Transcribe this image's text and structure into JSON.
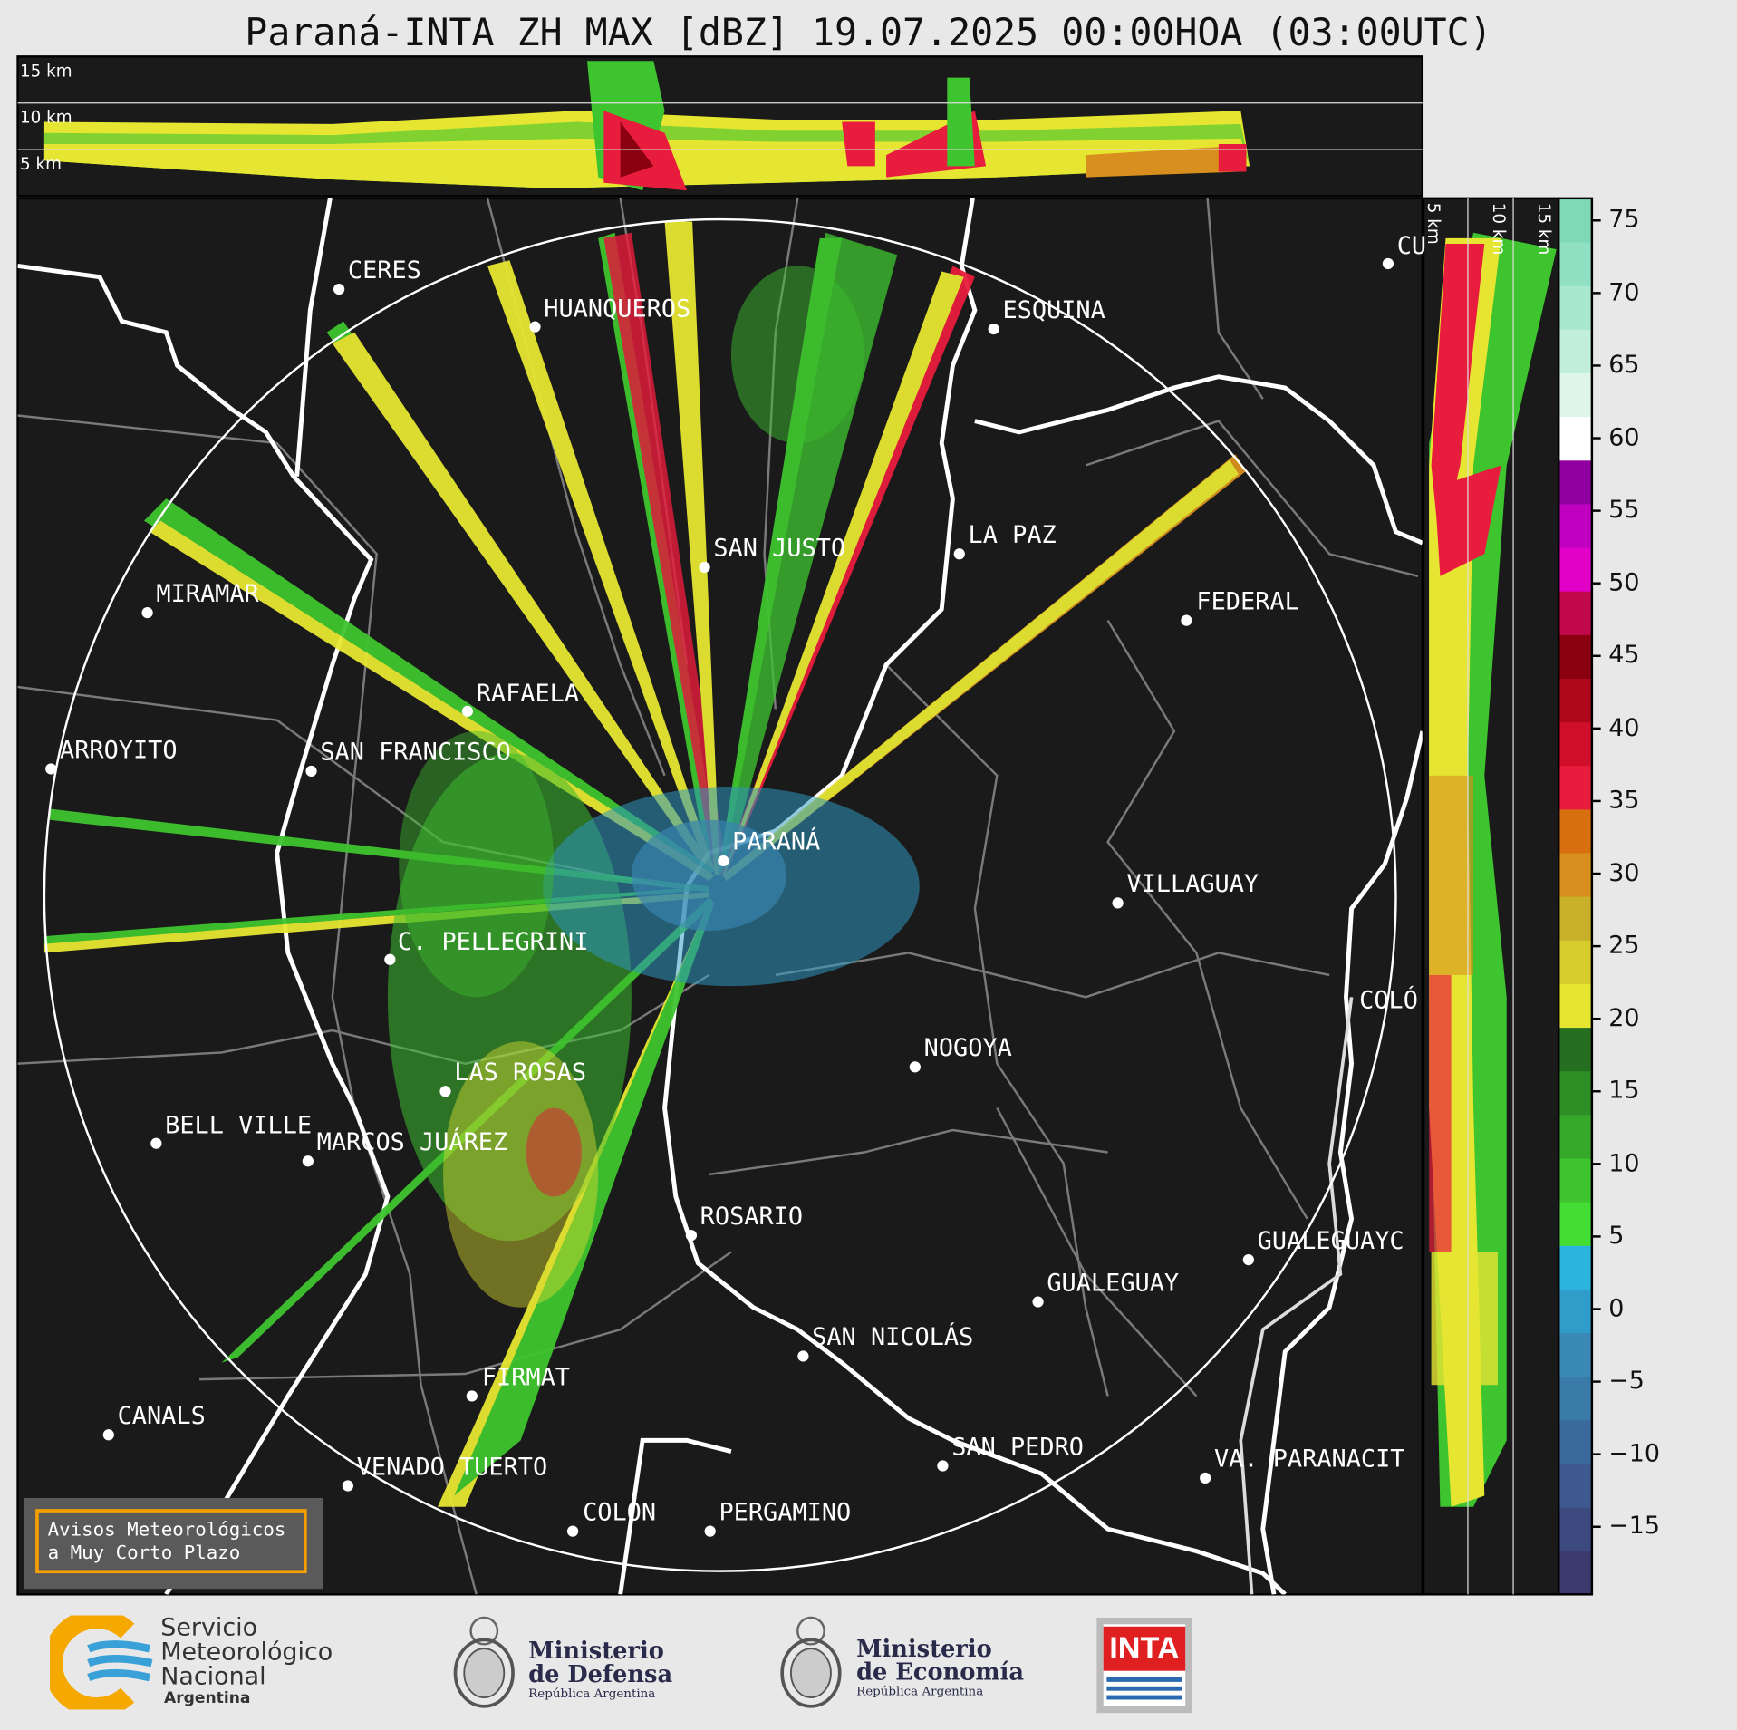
{
  "title": "Paraná-INTA ZH MAX [dBZ] 19.07.2025 00:00HOA (03:00UTC)",
  "top_panel_labels": [
    "15 km",
    "10 km",
    "5 km"
  ],
  "side_panel_labels": [
    "5 km",
    "10 km",
    "15 km"
  ],
  "cities": [
    {
      "name": "CERES"
    },
    {
      "name": "HUANQUEROS"
    },
    {
      "name": "ESQUINA"
    },
    {
      "name": "CU"
    },
    {
      "name": "SAN JUSTO"
    },
    {
      "name": "LA PAZ"
    },
    {
      "name": "MIRAMAR"
    },
    {
      "name": "FEDERAL"
    },
    {
      "name": "RAFAELA"
    },
    {
      "name": "ARROYITO"
    },
    {
      "name": "SAN FRANCISCO"
    },
    {
      "name": "PARANÁ"
    },
    {
      "name": "VILLAGUAY"
    },
    {
      "name": "C. PELLEGRINI"
    },
    {
      "name": "COLÓ"
    },
    {
      "name": "NOGOYA"
    },
    {
      "name": "LAS ROSAS"
    },
    {
      "name": "BELL VILLE"
    },
    {
      "name": "MARCOS JUÁREZ"
    },
    {
      "name": "ROSARIO"
    },
    {
      "name": "GUALEGUAYC"
    },
    {
      "name": "GUALEGUAY"
    },
    {
      "name": "SAN NICOLÁS"
    },
    {
      "name": "FIRMAT"
    },
    {
      "name": "CANALS"
    },
    {
      "name": "SAN PEDRO"
    },
    {
      "name": "VENADO TUERTO"
    },
    {
      "name": "VA. PARANACIT"
    },
    {
      "name": "COLÓN"
    },
    {
      "name": "PERGAMINO"
    }
  ],
  "colorbar": {
    "ticks": [
      "75",
      "70",
      "65",
      "60",
      "55",
      "50",
      "45",
      "40",
      "35",
      "30",
      "25",
      "20",
      "15",
      "10",
      "5",
      "0",
      "−5",
      "−10",
      "−15"
    ],
    "colors": [
      "#3a3a6e",
      "#3d4a80",
      "#3f5a90",
      "#3a6a9c",
      "#3a7aa8",
      "#3b8ab5",
      "#2f9cc9",
      "#2ab4de",
      "#44dd33",
      "#3ec42f",
      "#36a82a",
      "#2e8f26",
      "#266f20",
      "#e6e632",
      "#d6cc2c",
      "#c9b02a",
      "#d88f1e",
      "#d87010",
      "#e81c3c",
      "#d0102a",
      "#b0081a",
      "#8a0010",
      "#c0084a",
      "#e000c8",
      "#c000c0",
      "#9000a0",
      "#ffffff",
      "#dff5ec",
      "#c2eedc",
      "#a8e8d0",
      "#90e0c4",
      "#7fd8b8"
    ]
  },
  "notice": {
    "line1": "Avisos Meteorológicos",
    "line2": "a Muy Corto Plazo"
  },
  "logos": {
    "smn": {
      "line1": "Servicio",
      "line2": "Meteorológico",
      "line3": "Nacional",
      "line4": "Argentina"
    },
    "defensa": {
      "line1": "Ministerio",
      "line2": "de Defensa",
      "line3": "República Argentina"
    },
    "economia": {
      "line1": "Ministerio",
      "line2": "de Economía",
      "line3": "República Argentina"
    },
    "inta": {
      "text": "INTA"
    }
  }
}
